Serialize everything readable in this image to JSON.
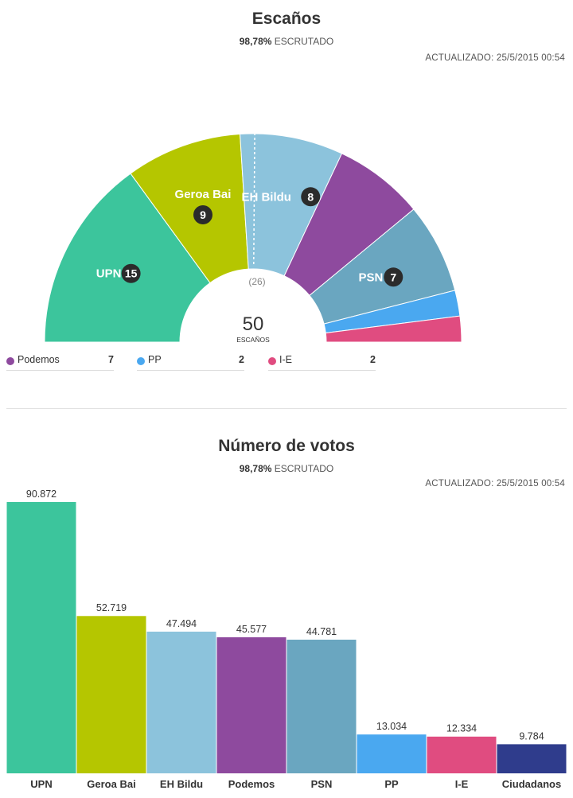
{
  "seats_section": {
    "title": "Escaños",
    "progress_value": "98,78%",
    "progress_label": "ESCRUTADO",
    "updated": "ACTUALIZADO: 25/5/2015 00:54",
    "majority_label": "(26)",
    "total_seats": "50",
    "total_label": "ESCAÑOS"
  },
  "votes_section": {
    "title": "Número de votos",
    "progress_value": "98,78%",
    "progress_label": "ESCRUTADO",
    "updated": "ACTUALIZADO: 25/5/2015 00:54"
  },
  "legend": [
    {
      "name": "Podemos",
      "value": "7",
      "color": "#8e4a9e"
    },
    {
      "name": "PP",
      "value": "2",
      "color": "#4aa8f0"
    },
    {
      "name": "I-E",
      "value": "2",
      "color": "#e04c80"
    }
  ],
  "chart_data": [
    {
      "type": "pie",
      "subtype": "hemicycle",
      "title": "Escaños",
      "total": 50,
      "categories": [
        "UPN",
        "Geroa Bai",
        "EH Bildu",
        "Podemos",
        "PSN",
        "PP",
        "I-E"
      ],
      "values": [
        15,
        9,
        8,
        7,
        7,
        2,
        2
      ],
      "colors": [
        "#3cc59c",
        "#b5c600",
        "#8cc3dc",
        "#8e4a9e",
        "#6aa6c0",
        "#4aa8f0",
        "#e04c80"
      ],
      "labeled": [
        {
          "name": "UPN",
          "value": "15"
        },
        {
          "name": "Geroa Bai",
          "value": "9"
        },
        {
          "name": "EH Bildu",
          "value": "8"
        },
        {
          "name": "PSN",
          "value": "7"
        }
      ]
    },
    {
      "type": "bar",
      "title": "Número de votos",
      "categories": [
        "UPN",
        "Geroa Bai",
        "EH Bildu",
        "Podemos",
        "PSN",
        "PP",
        "I-E",
        "Ciudadanos"
      ],
      "values": [
        90872,
        52719,
        47494,
        45577,
        44781,
        13034,
        12334,
        9784
      ],
      "value_labels": [
        "90.872",
        "52.719",
        "47.494",
        "45.577",
        "44.781",
        "13.034",
        "12.334",
        "9.784"
      ],
      "colors": [
        "#3cc59c",
        "#b5c600",
        "#8cc3dc",
        "#8e4a9e",
        "#6aa6c0",
        "#4aa8f0",
        "#e04c80",
        "#2f3c8c"
      ],
      "ylim": [
        0,
        90872
      ]
    }
  ]
}
